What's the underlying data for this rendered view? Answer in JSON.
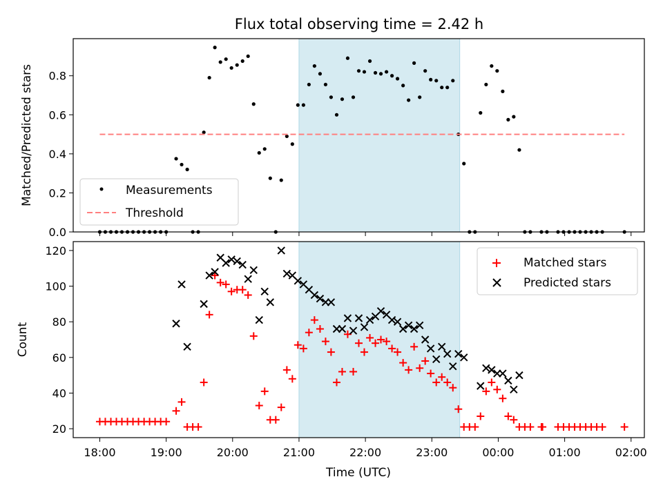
{
  "chart_data": [
    {
      "type": "scatter",
      "title": "Flux total observing time = 2.42 h",
      "ylabel": "Matched/Predicted stars",
      "xlabel": "",
      "ylim": [
        0,
        0.99
      ],
      "yticks": [
        "0.0",
        "0.2",
        "0.4",
        "0.6",
        "0.8"
      ],
      "ytick_values": [
        0,
        0.2,
        0.4,
        0.6,
        0.8
      ],
      "shaded_region": {
        "x_start": 21.0,
        "x_end": 23.42,
        "color": "#add8e6"
      },
      "legend": {
        "position": "lower-left",
        "entries": [
          "Measurements",
          "Threshold"
        ]
      },
      "series": [
        {
          "name": "Measurements",
          "marker": "dot",
          "color": "#000000",
          "points": [
            [
              18.0,
              0
            ],
            [
              18.083,
              0
            ],
            [
              18.167,
              0
            ],
            [
              18.25,
              0
            ],
            [
              18.333,
              0
            ],
            [
              18.417,
              0
            ],
            [
              18.5,
              0
            ],
            [
              18.583,
              0
            ],
            [
              18.667,
              0
            ],
            [
              18.75,
              0
            ],
            [
              18.833,
              0
            ],
            [
              18.917,
              0
            ],
            [
              19.0,
              0
            ],
            [
              19.15,
              0.375
            ],
            [
              19.233,
              0.345
            ],
            [
              19.317,
              0.32
            ],
            [
              19.4,
              0
            ],
            [
              19.483,
              0
            ],
            [
              19.567,
              0.51
            ],
            [
              19.65,
              0.79
            ],
            [
              19.733,
              0.945
            ],
            [
              19.817,
              0.87
            ],
            [
              19.9,
              0.885
            ],
            [
              19.983,
              0.84
            ],
            [
              20.067,
              0.855
            ],
            [
              20.15,
              0.875
            ],
            [
              20.233,
              0.9
            ],
            [
              20.317,
              0.655
            ],
            [
              20.4,
              0.405
            ],
            [
              20.483,
              0.425
            ],
            [
              20.567,
              0.275
            ],
            [
              20.65,
              0
            ],
            [
              20.733,
              0.265
            ],
            [
              20.817,
              0.49
            ],
            [
              20.9,
              0.45
            ],
            [
              20.983,
              0.65
            ],
            [
              21.067,
              0.65
            ],
            [
              21.15,
              0.755
            ],
            [
              21.233,
              0.85
            ],
            [
              21.317,
              0.81
            ],
            [
              21.4,
              0.755
            ],
            [
              21.483,
              0.69
            ],
            [
              21.567,
              0.6
            ],
            [
              21.65,
              0.68
            ],
            [
              21.733,
              0.89
            ],
            [
              21.817,
              0.69
            ],
            [
              21.9,
              0.825
            ],
            [
              21.983,
              0.82
            ],
            [
              22.067,
              0.875
            ],
            [
              22.15,
              0.815
            ],
            [
              22.233,
              0.81
            ],
            [
              22.317,
              0.82
            ],
            [
              22.4,
              0.8
            ],
            [
              22.483,
              0.785
            ],
            [
              22.567,
              0.75
            ],
            [
              22.65,
              0.675
            ],
            [
              22.733,
              0.865
            ],
            [
              22.817,
              0.69
            ],
            [
              22.9,
              0.825
            ],
            [
              22.983,
              0.78
            ],
            [
              23.067,
              0.775
            ],
            [
              23.15,
              0.74
            ],
            [
              23.233,
              0.74
            ],
            [
              23.317,
              0.775
            ],
            [
              23.4,
              0.5
            ],
            [
              23.483,
              0.35
            ],
            [
              23.567,
              0
            ],
            [
              23.65,
              0
            ],
            [
              23.733,
              0.61
            ],
            [
              23.817,
              0.755
            ],
            [
              23.9,
              0.85
            ],
            [
              23.983,
              0.825
            ],
            [
              24.067,
              0.72
            ],
            [
              24.15,
              0.575
            ],
            [
              24.233,
              0.59
            ],
            [
              24.317,
              0.42
            ],
            [
              24.4,
              0
            ],
            [
              24.483,
              0
            ],
            [
              24.65,
              0
            ],
            [
              24.733,
              0
            ],
            [
              24.9,
              0
            ],
            [
              24.983,
              0
            ],
            [
              25.067,
              0
            ],
            [
              25.15,
              0
            ],
            [
              25.233,
              0
            ],
            [
              25.317,
              0
            ],
            [
              25.4,
              0
            ],
            [
              25.483,
              0
            ],
            [
              25.567,
              0
            ],
            [
              25.9,
              0
            ]
          ]
        },
        {
          "name": "Threshold",
          "marker": "dashed-line",
          "color": "#ff7f7f",
          "points": [
            [
              18.0,
              0.5
            ],
            [
              25.9,
              0.5
            ]
          ]
        }
      ]
    },
    {
      "type": "scatter",
      "title": "",
      "ylabel": "Count",
      "xlabel": "Time (UTC)",
      "ylim": [
        15,
        125
      ],
      "yticks": [
        "20",
        "40",
        "60",
        "80",
        "100",
        "120"
      ],
      "ytick_values": [
        20,
        40,
        60,
        80,
        100,
        120
      ],
      "xlim": [
        17.6,
        26.2
      ],
      "xticks": [
        "18:00",
        "19:00",
        "20:00",
        "21:00",
        "22:00",
        "23:00",
        "00:00",
        "01:00",
        "02:00"
      ],
      "xtick_values": [
        18,
        19,
        20,
        21,
        22,
        23,
        24,
        25,
        26
      ],
      "shaded_region": {
        "x_start": 21.0,
        "x_end": 23.42,
        "color": "#add8e6"
      },
      "legend": {
        "position": "top-right",
        "entries": [
          "Matched stars",
          "Predicted stars"
        ]
      },
      "series": [
        {
          "name": "Matched stars",
          "marker": "plus",
          "color": "#ff0000",
          "points": [
            [
              18.0,
              24
            ],
            [
              18.083,
              24
            ],
            [
              18.167,
              24
            ],
            [
              18.25,
              24
            ],
            [
              18.333,
              24
            ],
            [
              18.417,
              24
            ],
            [
              18.5,
              24
            ],
            [
              18.583,
              24
            ],
            [
              18.667,
              24
            ],
            [
              18.75,
              24
            ],
            [
              18.833,
              24
            ],
            [
              18.917,
              24
            ],
            [
              19.0,
              24
            ],
            [
              19.15,
              30
            ],
            [
              19.233,
              35
            ],
            [
              19.317,
              21
            ],
            [
              19.4,
              21
            ],
            [
              19.483,
              21
            ],
            [
              19.567,
              46
            ],
            [
              19.65,
              84
            ],
            [
              19.733,
              106
            ],
            [
              19.817,
              102
            ],
            [
              19.9,
              101
            ],
            [
              19.983,
              97
            ],
            [
              20.067,
              98
            ],
            [
              20.15,
              98
            ],
            [
              20.233,
              95
            ],
            [
              20.317,
              72
            ],
            [
              20.4,
              33
            ],
            [
              20.483,
              41
            ],
            [
              20.567,
              25
            ],
            [
              20.65,
              25
            ],
            [
              20.733,
              32
            ],
            [
              20.817,
              53
            ],
            [
              20.9,
              48
            ],
            [
              20.983,
              67
            ],
            [
              21.067,
              65
            ],
            [
              21.15,
              74
            ],
            [
              21.233,
              81
            ],
            [
              21.317,
              76
            ],
            [
              21.4,
              69
            ],
            [
              21.483,
              63
            ],
            [
              21.567,
              46
            ],
            [
              21.65,
              52
            ],
            [
              21.733,
              73
            ],
            [
              21.817,
              52
            ],
            [
              21.9,
              68
            ],
            [
              21.983,
              63
            ],
            [
              22.067,
              71
            ],
            [
              22.15,
              68
            ],
            [
              22.233,
              70
            ],
            [
              22.317,
              69
            ],
            [
              22.4,
              65
            ],
            [
              22.483,
              63
            ],
            [
              22.567,
              57
            ],
            [
              22.65,
              53
            ],
            [
              22.733,
              66
            ],
            [
              22.817,
              54
            ],
            [
              22.9,
              58
            ],
            [
              22.983,
              51
            ],
            [
              23.067,
              46
            ],
            [
              23.15,
              49
            ],
            [
              23.233,
              46
            ],
            [
              23.317,
              43
            ],
            [
              23.4,
              31
            ],
            [
              23.483,
              21
            ],
            [
              23.567,
              21
            ],
            [
              23.65,
              21
            ],
            [
              23.733,
              27
            ],
            [
              23.817,
              41
            ],
            [
              23.9,
              46
            ],
            [
              23.983,
              42
            ],
            [
              24.067,
              37
            ],
            [
              24.15,
              27
            ],
            [
              24.233,
              25
            ],
            [
              24.317,
              21
            ],
            [
              24.4,
              21
            ],
            [
              24.483,
              21
            ],
            [
              24.65,
              21
            ],
            [
              24.667,
              21
            ],
            [
              24.9,
              21
            ],
            [
              24.983,
              21
            ],
            [
              25.067,
              21
            ],
            [
              25.15,
              21
            ],
            [
              25.233,
              21
            ],
            [
              25.317,
              21
            ],
            [
              25.4,
              21
            ],
            [
              25.483,
              21
            ],
            [
              25.567,
              21
            ],
            [
              25.9,
              21
            ]
          ]
        },
        {
          "name": "Predicted stars",
          "marker": "x",
          "color": "#000000",
          "points": [
            [
              19.15,
              79
            ],
            [
              19.233,
              101
            ],
            [
              19.317,
              66
            ],
            [
              19.567,
              90
            ],
            [
              19.65,
              106
            ],
            [
              19.733,
              108
            ],
            [
              19.817,
              116
            ],
            [
              19.9,
              113
            ],
            [
              19.983,
              115
            ],
            [
              20.067,
              114
            ],
            [
              20.15,
              112
            ],
            [
              20.233,
              104
            ],
            [
              20.317,
              109
            ],
            [
              20.4,
              81
            ],
            [
              20.483,
              97
            ],
            [
              20.567,
              91
            ],
            [
              20.733,
              120
            ],
            [
              20.817,
              107
            ],
            [
              20.9,
              106
            ],
            [
              20.983,
              103
            ],
            [
              21.067,
              101
            ],
            [
              21.15,
              98
            ],
            [
              21.233,
              95
            ],
            [
              21.317,
              93
            ],
            [
              21.4,
              91
            ],
            [
              21.483,
              91
            ],
            [
              21.567,
              76
            ],
            [
              21.65,
              76
            ],
            [
              21.733,
              82
            ],
            [
              21.817,
              75
            ],
            [
              21.9,
              82
            ],
            [
              21.983,
              77
            ],
            [
              22.067,
              81
            ],
            [
              22.15,
              83
            ],
            [
              22.233,
              86
            ],
            [
              22.317,
              84
            ],
            [
              22.4,
              81
            ],
            [
              22.483,
              80
            ],
            [
              22.567,
              76
            ],
            [
              22.65,
              78
            ],
            [
              22.733,
              76
            ],
            [
              22.817,
              78
            ],
            [
              22.9,
              70
            ],
            [
              22.983,
              65
            ],
            [
              23.067,
              59
            ],
            [
              23.15,
              66
            ],
            [
              23.233,
              62
            ],
            [
              23.317,
              55
            ],
            [
              23.4,
              62
            ],
            [
              23.483,
              60
            ],
            [
              23.733,
              44
            ],
            [
              23.817,
              54
            ],
            [
              23.9,
              53
            ],
            [
              23.983,
              51
            ],
            [
              24.067,
              51
            ],
            [
              24.15,
              47
            ],
            [
              24.233,
              42
            ],
            [
              24.317,
              50
            ]
          ]
        }
      ]
    }
  ]
}
